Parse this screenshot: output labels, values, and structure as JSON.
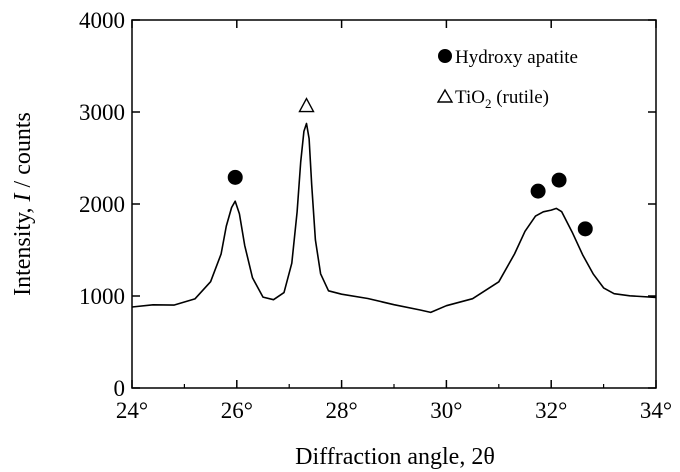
{
  "chart_data": {
    "type": "line",
    "title": "",
    "xlabel": "Diffraction angle, 2θ",
    "ylabel_parts": {
      "before": "Intensity, ",
      "italic": "I",
      "after": " / counts"
    },
    "xlim": [
      24,
      34
    ],
    "ylim": [
      0,
      4000
    ],
    "x_ticks": [
      {
        "value": 24,
        "label": "24°"
      },
      {
        "value": 26,
        "label": "26°"
      },
      {
        "value": 28,
        "label": "28°"
      },
      {
        "value": 30,
        "label": "30°"
      },
      {
        "value": 32,
        "label": "32°"
      },
      {
        "value": 34,
        "label": "34°"
      }
    ],
    "y_ticks": [
      {
        "value": 0,
        "label": "0"
      },
      {
        "value": 1000,
        "label": "1000"
      },
      {
        "value": 2000,
        "label": "2000"
      },
      {
        "value": 3000,
        "label": "3000"
      },
      {
        "value": 4000,
        "label": "4000"
      }
    ],
    "grid": false,
    "legend": {
      "position": "top-right",
      "entries": [
        {
          "marker": "filled-circle",
          "label": "Hydroxy apatite"
        },
        {
          "marker": "open-triangle",
          "label_main": "TiO",
          "label_sub": "2",
          "label_tail": " (rutile)"
        }
      ]
    },
    "series": [
      {
        "x": [
          24.0,
          24.4,
          24.8,
          25.2,
          25.5,
          25.7,
          25.8,
          25.9,
          25.97,
          26.05,
          26.15,
          26.3,
          26.5,
          26.7,
          26.9,
          27.05,
          27.15,
          27.22,
          27.28,
          27.33,
          27.38,
          27.43,
          27.5,
          27.6,
          27.75,
          28.0,
          28.5,
          29.0,
          29.5,
          29.7,
          30.0,
          30.5,
          31.0,
          31.3,
          31.5,
          31.7,
          31.85,
          32.0,
          32.1,
          32.2,
          32.4,
          32.6,
          32.8,
          33.0,
          33.2,
          33.5,
          34.0
        ],
        "y": [
          880,
          890,
          900,
          960,
          1150,
          1450,
          1750,
          1960,
          2040,
          1900,
          1550,
          1200,
          1000,
          960,
          1040,
          1350,
          1900,
          2450,
          2780,
          2870,
          2700,
          2200,
          1600,
          1250,
          1070,
          1030,
          980,
          920,
          860,
          830,
          880,
          960,
          1150,
          1450,
          1700,
          1860,
          1900,
          1920,
          1960,
          1920,
          1700,
          1450,
          1250,
          1100,
          1030,
          990,
          980
        ]
      }
    ],
    "annotations": [
      {
        "marker": "filled-circle",
        "x": 25.97,
        "y": 2290
      },
      {
        "marker": "open-triangle",
        "x": 27.33,
        "y": 3070
      },
      {
        "marker": "filled-circle",
        "x": 31.75,
        "y": 2140
      },
      {
        "marker": "filled-circle",
        "x": 32.15,
        "y": 2260
      },
      {
        "marker": "filled-circle",
        "x": 32.65,
        "y": 1730
      }
    ]
  }
}
